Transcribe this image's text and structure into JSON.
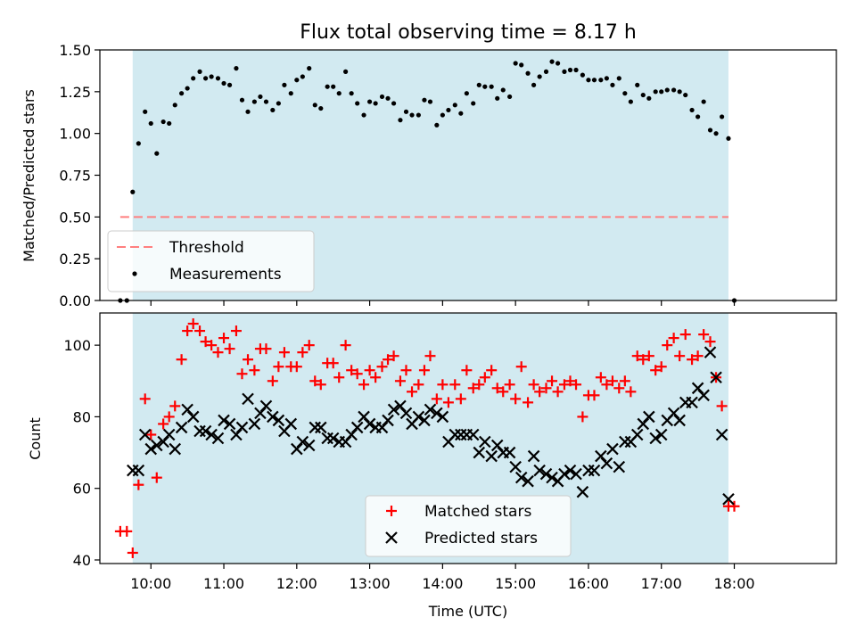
{
  "chart_data": [
    {
      "type": "scatter",
      "title": "Flux total observing time = 8.17 h",
      "xlabel": "",
      "ylabel": "Matched/Predicted stars",
      "xlim": [
        9.3,
        19.4
      ],
      "ylim": [
        0.0,
        1.5
      ],
      "yticks": [
        "0.00",
        "0.25",
        "0.50",
        "0.75",
        "1.00",
        "1.25",
        "1.50"
      ],
      "shaded_span": [
        9.75,
        17.92
      ],
      "shade_color": "#add8e6",
      "legend_position": "lower-left",
      "threshold": {
        "name": "Threshold",
        "y": 0.5,
        "x_range": [
          9.58,
          17.92
        ],
        "color": "#ff7f7f",
        "style": "dashed"
      },
      "series": [
        {
          "name": "Measurements",
          "marker": "dot",
          "color": "#000000",
          "x": [
            9.58,
            9.67,
            9.75,
            9.83,
            9.92,
            10.0,
            10.08,
            10.17,
            10.25,
            10.33,
            10.42,
            10.5,
            10.58,
            10.67,
            10.75,
            10.83,
            10.92,
            11.0,
            11.08,
            11.17,
            11.25,
            11.33,
            11.42,
            11.5,
            11.58,
            11.67,
            11.75,
            11.83,
            11.92,
            12.0,
            12.08,
            12.17,
            12.25,
            12.33,
            12.42,
            12.5,
            12.58,
            12.67,
            12.75,
            12.83,
            12.92,
            13.0,
            13.08,
            13.17,
            13.25,
            13.33,
            13.42,
            13.5,
            13.58,
            13.67,
            13.75,
            13.83,
            13.92,
            14.0,
            14.08,
            14.17,
            14.25,
            14.33,
            14.42,
            14.5,
            14.58,
            14.67,
            14.75,
            14.83,
            14.92,
            15.0,
            15.08,
            15.17,
            15.25,
            15.33,
            15.42,
            15.5,
            15.58,
            15.67,
            15.75,
            15.83,
            15.92,
            16.0,
            16.08,
            16.17,
            16.25,
            16.33,
            16.42,
            16.5,
            16.58,
            16.67,
            16.75,
            16.83,
            16.92,
            17.0,
            17.08,
            17.17,
            17.25,
            17.33,
            17.42,
            17.5,
            17.58,
            17.67,
            17.75,
            17.83,
            17.92,
            18.0
          ],
          "y": [
            0.0,
            0.0,
            0.65,
            0.94,
            1.13,
            1.06,
            0.88,
            1.07,
            1.06,
            1.17,
            1.24,
            1.27,
            1.33,
            1.37,
            1.33,
            1.34,
            1.33,
            1.3,
            1.29,
            1.39,
            1.2,
            1.13,
            1.19,
            1.22,
            1.19,
            1.14,
            1.18,
            1.29,
            1.24,
            1.32,
            1.34,
            1.39,
            1.17,
            1.15,
            1.28,
            1.28,
            1.24,
            1.37,
            1.24,
            1.18,
            1.11,
            1.19,
            1.18,
            1.22,
            1.21,
            1.18,
            1.08,
            1.13,
            1.11,
            1.11,
            1.2,
            1.19,
            1.05,
            1.11,
            1.14,
            1.17,
            1.12,
            1.24,
            1.18,
            1.29,
            1.28,
            1.28,
            1.21,
            1.26,
            1.22,
            1.42,
            1.41,
            1.36,
            1.29,
            1.34,
            1.37,
            1.43,
            1.42,
            1.37,
            1.38,
            1.38,
            1.35,
            1.32,
            1.32,
            1.32,
            1.33,
            1.29,
            1.33,
            1.24,
            1.19,
            1.29,
            1.23,
            1.21,
            1.25,
            1.25,
            1.26,
            1.26,
            1.25,
            1.23,
            1.14,
            1.1,
            1.19,
            1.02,
            1.0,
            1.1,
            0.97,
            0.0
          ]
        }
      ]
    },
    {
      "type": "scatter",
      "title": "",
      "xlabel": "Time (UTC)",
      "ylabel": "Count",
      "xlim": [
        9.3,
        19.4
      ],
      "ylim": [
        39,
        109
      ],
      "xticks": [
        "10:00",
        "11:00",
        "12:00",
        "13:00",
        "14:00",
        "15:00",
        "16:00",
        "17:00",
        "18:00"
      ],
      "xtick_values": [
        10,
        11,
        12,
        13,
        14,
        15,
        16,
        17,
        18
      ],
      "yticks": [
        "40",
        "60",
        "80",
        "100"
      ],
      "ytick_values": [
        40,
        60,
        80,
        100
      ],
      "shaded_span": [
        9.75,
        17.92
      ],
      "shade_color": "#add8e6",
      "legend_position": "lower-center",
      "series": [
        {
          "name": "Matched stars",
          "marker": "plus",
          "color": "#ff0000",
          "x": [
            9.58,
            9.67,
            9.75,
            9.83,
            9.92,
            10.0,
            10.08,
            10.17,
            10.25,
            10.33,
            10.42,
            10.5,
            10.58,
            10.67,
            10.75,
            10.83,
            10.92,
            11.0,
            11.08,
            11.17,
            11.25,
            11.33,
            11.42,
            11.5,
            11.58,
            11.67,
            11.75,
            11.83,
            11.92,
            12.0,
            12.08,
            12.17,
            12.25,
            12.33,
            12.42,
            12.5,
            12.58,
            12.67,
            12.75,
            12.83,
            12.92,
            13.0,
            13.08,
            13.17,
            13.25,
            13.33,
            13.42,
            13.5,
            13.58,
            13.67,
            13.75,
            13.83,
            13.92,
            14.0,
            14.08,
            14.17,
            14.25,
            14.33,
            14.42,
            14.5,
            14.58,
            14.67,
            14.75,
            14.83,
            14.92,
            15.0,
            15.08,
            15.17,
            15.25,
            15.33,
            15.42,
            15.5,
            15.58,
            15.67,
            15.75,
            15.83,
            15.92,
            16.0,
            16.08,
            16.17,
            16.25,
            16.33,
            16.42,
            16.5,
            16.58,
            16.67,
            16.75,
            16.83,
            16.92,
            17.0,
            17.08,
            17.17,
            17.25,
            17.33,
            17.42,
            17.5,
            17.58,
            17.67,
            17.75,
            17.83,
            17.92,
            18.0
          ],
          "y": [
            48,
            48,
            42,
            61,
            85,
            75,
            63,
            78,
            80,
            83,
            96,
            104,
            106,
            104,
            101,
            100,
            98,
            102,
            99,
            104,
            92,
            96,
            93,
            99,
            99,
            90,
            94,
            98,
            94,
            94,
            98,
            100,
            90,
            89,
            95,
            95,
            91,
            100,
            93,
            92,
            89,
            93,
            91,
            94,
            96,
            97,
            90,
            93,
            87,
            89,
            93,
            97,
            85,
            89,
            84,
            89,
            85,
            93,
            88,
            89,
            91,
            93,
            88,
            87,
            89,
            85,
            94,
            84,
            89,
            87,
            88,
            90,
            87,
            89,
            90,
            89,
            80,
            86,
            86,
            91,
            89,
            90,
            88,
            90,
            87,
            97,
            96,
            97,
            93,
            94,
            100,
            102,
            97,
            103,
            96,
            97,
            103,
            101,
            91,
            83,
            55,
            55
          ]
        },
        {
          "name": "Predicted stars",
          "marker": "x",
          "color": "#000000",
          "x": [
            9.75,
            9.83,
            9.92,
            10.0,
            10.08,
            10.17,
            10.25,
            10.33,
            10.42,
            10.5,
            10.58,
            10.67,
            10.75,
            10.83,
            10.92,
            11.0,
            11.08,
            11.17,
            11.25,
            11.33,
            11.42,
            11.5,
            11.58,
            11.67,
            11.75,
            11.83,
            11.92,
            12.0,
            12.08,
            12.17,
            12.25,
            12.33,
            12.42,
            12.5,
            12.58,
            12.67,
            12.75,
            12.83,
            12.92,
            13.0,
            13.08,
            13.17,
            13.25,
            13.33,
            13.42,
            13.5,
            13.58,
            13.67,
            13.75,
            13.83,
            13.92,
            14.0,
            14.08,
            14.17,
            14.25,
            14.33,
            14.42,
            14.5,
            14.58,
            14.67,
            14.75,
            14.83,
            14.92,
            15.0,
            15.08,
            15.17,
            15.25,
            15.33,
            15.42,
            15.5,
            15.58,
            15.67,
            15.75,
            15.83,
            15.92,
            16.0,
            16.08,
            16.17,
            16.25,
            16.33,
            16.42,
            16.5,
            16.58,
            16.67,
            16.75,
            16.83,
            16.92,
            17.0,
            17.08,
            17.17,
            17.25,
            17.33,
            17.42,
            17.5,
            17.58,
            17.67,
            17.75,
            17.83,
            17.92
          ],
          "y": [
            65,
            65,
            75,
            71,
            72,
            73,
            75,
            71,
            77,
            82,
            80,
            76,
            76,
            75,
            74,
            79,
            78,
            75,
            77,
            85,
            78,
            81,
            83,
            80,
            79,
            76,
            78,
            71,
            73,
            72,
            77,
            77,
            74,
            74,
            73,
            73,
            75,
            77,
            80,
            78,
            77,
            77,
            79,
            82,
            83,
            81,
            78,
            80,
            79,
            82,
            81,
            80,
            73,
            75,
            75,
            75,
            75,
            70,
            73,
            69,
            72,
            70,
            70,
            66,
            63,
            62,
            69,
            65,
            64,
            63,
            62,
            64,
            65,
            64,
            59,
            65,
            65,
            69,
            67,
            71,
            66,
            73,
            73,
            75,
            78,
            80,
            74,
            75,
            79,
            81,
            79,
            84,
            84,
            88,
            86,
            98,
            91,
            75,
            57
          ]
        }
      ]
    }
  ]
}
